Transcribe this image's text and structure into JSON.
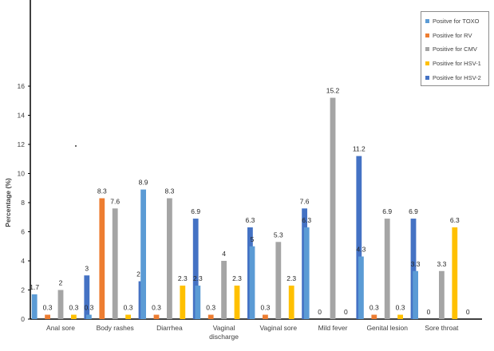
{
  "chart_data": {
    "type": "bar",
    "title": "",
    "xlabel": "",
    "ylabel": "Percentage (%)",
    "ylim": [
      0,
      16
    ],
    "yticks": [
      "0",
      "2",
      "4",
      "6",
      "8",
      "10",
      "12",
      "14",
      "16"
    ],
    "categories": [
      "Anal sore",
      "Body rashes",
      "Diarrhea",
      "Vaginal discharge",
      "Vaginal sore",
      "Mild fever",
      "Genital lesion",
      "Sore throat"
    ],
    "series": [
      {
        "name": "Positve for TOXO",
        "color": "#5b9bd5",
        "values": [
          1.7,
          0.3,
          8.9,
          2.3,
          5,
          6.3,
          4.3,
          3.3
        ],
        "labels": [
          "1.7",
          "0.3",
          "8.9",
          "2.3",
          "5",
          "6.3",
          "4.3",
          "3.3"
        ]
      },
      {
        "name": "Positive for RV",
        "color": "#ed7d31",
        "values": [
          0.3,
          8.3,
          0.3,
          0.3,
          0.3,
          0,
          0.3,
          0
        ],
        "labels": [
          "0.3",
          "8.3",
          "0.3",
          "0.3",
          "0.3",
          "0",
          "0.3",
          "0"
        ]
      },
      {
        "name": "Positive for CMV",
        "color": "#a5a5a5",
        "values": [
          2,
          7.6,
          8.3,
          4,
          5.3,
          15.2,
          6.9,
          3.3
        ],
        "labels": [
          "2",
          "7.6",
          "8.3",
          "4",
          "5.3",
          "15.2",
          "6.9",
          "3.3"
        ]
      },
      {
        "name": "Positive for HSV-1",
        "color": "#ffc000",
        "values": [
          0.3,
          0.3,
          2.3,
          2.3,
          2.3,
          0,
          0.3,
          6.3
        ],
        "labels": [
          "0.3",
          "0.3",
          "2.3",
          "2.3",
          "2.3",
          "0",
          "0.3",
          "6.3"
        ]
      },
      {
        "name": "Positive for HSV-2",
        "color": "#4472c4",
        "values": [
          3,
          2.6,
          6.9,
          6.3,
          7.6,
          11.2,
          6.9,
          0
        ],
        "labels": [
          "3",
          "2.6",
          "6.9",
          "6.3",
          "7.6",
          "11.2",
          "6.9",
          "0"
        ]
      }
    ],
    "legend_position": "top-right",
    "grid": false
  }
}
